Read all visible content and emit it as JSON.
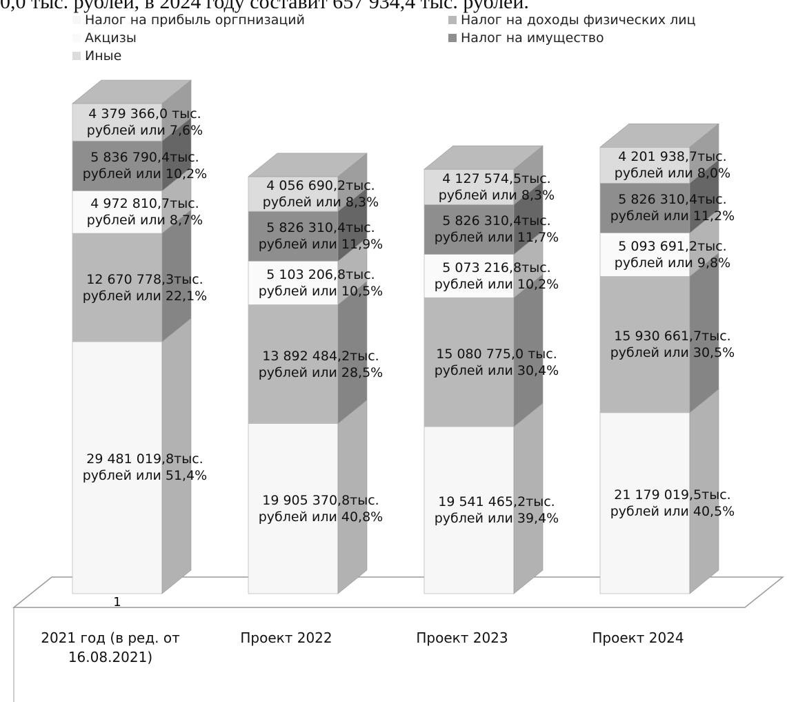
{
  "top_text": "0,0 тыс. рублей, в 2024 году составит 657 934,4 тыс. рублей.",
  "chart_data": {
    "type": "bar",
    "stacked": true,
    "categories": [
      "2021 год (в ред. от 16.08.2021)",
      "Проект 2022",
      "Проект 2023",
      "Проект 2024"
    ],
    "annotations": [
      "1"
    ],
    "series": [
      {
        "name": "Налог на прибыль оргпнизаций",
        "color": "#f7f7f7",
        "values": [
          29481019.8,
          19905370.8,
          19541465.2,
          21179019.5
        ],
        "value_labels": [
          "29 481 019,8тыс. рублей или 51,4%",
          "19 905 370,8тыс. рублей или 40,8%",
          "19 541 465,2тыс. рублей или 39,4%",
          "21 179 019,5тыс. рублей или 40,5%"
        ]
      },
      {
        "name": "Налог на доходы физических лиц",
        "color": "#b9b9b9",
        "values": [
          12670778.3,
          13892484.2,
          15080775.0,
          15930661.7
        ],
        "value_labels": [
          "12 670 778,3тыс. рублей или 22,1%",
          "13 892 484,2тыс. рублей или 28,5%",
          "15 080 775,0 тыс. рублей или 30,4%",
          "15 930 661,7тыс. рублей или 30,5%"
        ]
      },
      {
        "name": "Акцизы",
        "color": "#fafafa",
        "values": [
          4972810.7,
          5103206.8,
          5073216.8,
          5093691.2
        ],
        "value_labels": [
          "4 972 810,7тыс. рублей или 8,7%",
          "5 103 206,8тыс. рублей или 10,5%",
          "5 073 216,8тыс. рублей или 10,2%",
          "5 093 691,2тыс. рублей или 9,8%"
        ]
      },
      {
        "name": "Налог на имущество",
        "color": "#8e8e8e",
        "values": [
          5836790.4,
          5826310.4,
          5826310.4,
          5826310.4
        ],
        "value_labels": [
          "5 836 790,4тыс. рублей или 10,2%",
          "5 826 310,4тыс. рублей или 11,9%",
          "5 826 310,4тыс. рублей или 11,7%",
          "5 826 310,4тыс. рублей или 11,2%"
        ]
      },
      {
        "name": "Иные",
        "color": "#dcdcdc",
        "values": [
          4379366.0,
          4056690.2,
          4127574.5,
          4201938.7
        ],
        "value_labels": [
          "4 379 366,0 тыс. рублей или 7,6%",
          "4 056 690,2тыс. рублей или 8,3%",
          "4 127 574,5тыс. рублей или 8,3%",
          "4 201 938,7тыс. рублей или 8,0%"
        ]
      }
    ]
  }
}
